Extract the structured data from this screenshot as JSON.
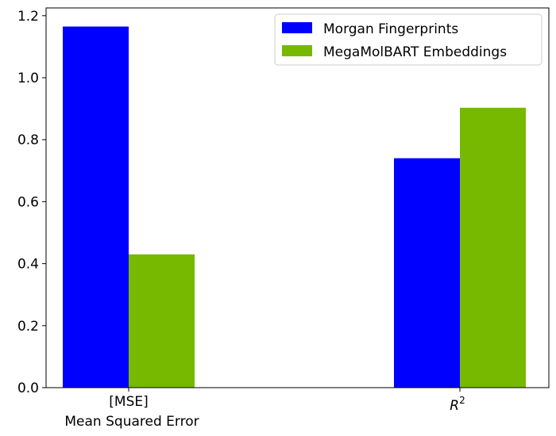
{
  "chart_data": {
    "type": "bar",
    "categories": [
      {
        "line1": "[MSE]",
        "line2": "Mean Squared Error"
      },
      {
        "base": "R",
        "sup": "2"
      }
    ],
    "series": [
      {
        "name": "Morgan Fingerprints",
        "color": "#0000ff",
        "values": [
          1.165,
          0.74
        ]
      },
      {
        "name": "MegaMolBART Embeddings",
        "color": "#76b900",
        "values": [
          0.43,
          0.903
        ]
      }
    ],
    "ylim": [
      0,
      1.225
    ],
    "yticks": [
      "0.0",
      "0.2",
      "0.4",
      "0.6",
      "0.8",
      "1.0",
      "1.2"
    ],
    "legend_position": "top-right",
    "grid": false
  }
}
